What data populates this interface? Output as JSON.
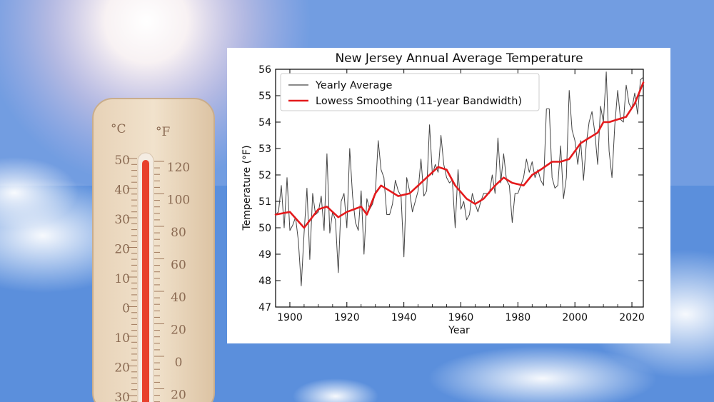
{
  "thermometer": {
    "celsius_unit": "°C",
    "fahrenheit_unit": "°F",
    "celsius_ticks": [
      "50",
      "40",
      "30",
      "20",
      "10",
      "0",
      "10",
      "20",
      "30"
    ],
    "fahrenheit_ticks": [
      "120",
      "100",
      "80",
      "60",
      "40",
      "20",
      "0",
      "20"
    ],
    "mercury_color": "#e8402a"
  },
  "chart_data": {
    "type": "line",
    "title": "New Jersey Annual Average Temperature",
    "xlabel": "Year",
    "ylabel": "Temperature (°F)",
    "xlim": [
      1895,
      2024
    ],
    "ylim": [
      47,
      56
    ],
    "xticks": [
      1900,
      1920,
      1940,
      1960,
      1980,
      2000,
      2020
    ],
    "yticks": [
      47,
      48,
      49,
      50,
      51,
      52,
      53,
      54,
      55,
      56
    ],
    "legend_position": "top-left",
    "series": [
      {
        "name": "Yearly Average",
        "color": "#444444",
        "x": [
          1895,
          1896,
          1897,
          1898,
          1899,
          1900,
          1901,
          1902,
          1903,
          1904,
          1905,
          1906,
          1907,
          1908,
          1909,
          1910,
          1911,
          1912,
          1913,
          1914,
          1915,
          1916,
          1917,
          1918,
          1919,
          1920,
          1921,
          1922,
          1923,
          1924,
          1925,
          1926,
          1927,
          1928,
          1929,
          1930,
          1931,
          1932,
          1933,
          1934,
          1935,
          1936,
          1937,
          1938,
          1939,
          1940,
          1941,
          1942,
          1943,
          1944,
          1945,
          1946,
          1947,
          1948,
          1949,
          1950,
          1951,
          1952,
          1953,
          1954,
          1955,
          1956,
          1957,
          1958,
          1959,
          1960,
          1961,
          1962,
          1963,
          1964,
          1965,
          1966,
          1967,
          1968,
          1969,
          1970,
          1971,
          1972,
          1973,
          1974,
          1975,
          1976,
          1977,
          1978,
          1979,
          1980,
          1981,
          1982,
          1983,
          1984,
          1985,
          1986,
          1987,
          1988,
          1989,
          1990,
          1991,
          1992,
          1993,
          1994,
          1995,
          1996,
          1997,
          1998,
          1999,
          2000,
          2001,
          2002,
          2003,
          2004,
          2005,
          2006,
          2007,
          2008,
          2009,
          2010,
          2011,
          2012,
          2013,
          2014,
          2015,
          2016,
          2017,
          2018,
          2019,
          2020,
          2021,
          2022,
          2023,
          2024
        ],
        "values": [
          50.5,
          50.6,
          51.6,
          50.0,
          51.9,
          49.9,
          50.1,
          50.4,
          49.5,
          47.8,
          49.8,
          51.5,
          48.8,
          51.3,
          50.5,
          50.6,
          51.2,
          49.9,
          52.8,
          49.8,
          50.6,
          50.3,
          48.3,
          51.0,
          51.3,
          50.0,
          53.0,
          51.2,
          50.2,
          49.9,
          51.4,
          49.0,
          51.1,
          50.7,
          50.9,
          51.3,
          53.3,
          52.2,
          51.9,
          50.5,
          50.5,
          50.9,
          51.8,
          51.4,
          51.2,
          48.9,
          51.9,
          51.4,
          50.6,
          51.0,
          51.4,
          52.6,
          51.2,
          51.4,
          53.9,
          52.0,
          52.4,
          52.1,
          53.5,
          52.4,
          51.9,
          51.7,
          51.8,
          50.0,
          52.2,
          50.7,
          51.0,
          50.3,
          50.5,
          51.3,
          50.9,
          50.6,
          51.0,
          51.3,
          51.3,
          51.3,
          52.0,
          51.3,
          53.4,
          51.7,
          52.8,
          51.8,
          51.6,
          50.2,
          51.3,
          51.3,
          51.6,
          51.9,
          52.6,
          52.1,
          52.5,
          51.9,
          52.2,
          51.8,
          51.6,
          54.5,
          54.5,
          51.9,
          51.5,
          51.6,
          53.1,
          51.1,
          51.9,
          55.2,
          53.7,
          53.3,
          52.4,
          53.3,
          51.8,
          53.2,
          54.0,
          54.4,
          53.6,
          52.4,
          54.6,
          54.0,
          55.9,
          52.9,
          51.9,
          53.9,
          55.2,
          54.1,
          54.0,
          55.4,
          54.7,
          54.5,
          55.1,
          54.3,
          55.6,
          55.7
        ]
      },
      {
        "name": "Lowess Smoothing (11-year Bandwidth)",
        "color": "#e41a1c",
        "x": [
          1895,
          1900,
          1905,
          1910,
          1913,
          1917,
          1920,
          1925,
          1927,
          1930,
          1932,
          1935,
          1938,
          1942,
          1945,
          1948,
          1950,
          1952,
          1955,
          1958,
          1962,
          1965,
          1968,
          1972,
          1975,
          1978,
          1982,
          1985,
          1988,
          1992,
          1995,
          1998,
          2002,
          2005,
          2008,
          2010,
          2012,
          2015,
          2018,
          2021,
          2024
        ],
        "values": [
          50.5,
          50.6,
          50.0,
          50.7,
          50.8,
          50.4,
          50.6,
          50.8,
          50.5,
          51.3,
          51.6,
          51.4,
          51.2,
          51.3,
          51.6,
          51.9,
          52.1,
          52.3,
          52.2,
          51.6,
          51.1,
          50.9,
          51.1,
          51.6,
          51.9,
          51.7,
          51.6,
          52.0,
          52.2,
          52.5,
          52.5,
          52.6,
          53.2,
          53.4,
          53.6,
          54.0,
          54.0,
          54.1,
          54.2,
          54.7,
          55.5
        ]
      }
    ]
  }
}
